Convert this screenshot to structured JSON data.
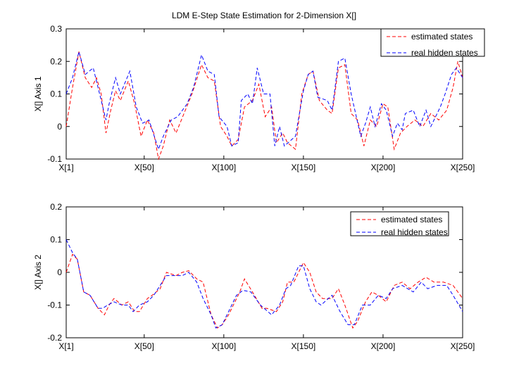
{
  "chart_data": [
    {
      "type": "line",
      "title": "LDM E-Step State Estimation for 2-Dimension X[]",
      "xlabel": "",
      "ylabel": "X[] Axis 1",
      "xlim": [
        1,
        250
      ],
      "ylim": [
        -0.1,
        0.3
      ],
      "xticks": [
        1,
        50,
        100,
        150,
        200,
        250
      ],
      "xtick_labels": [
        "X[1]",
        "X[50]",
        "X[100]",
        "X[150]",
        "X[200]",
        "X[250]"
      ],
      "yticks": [
        -0.1,
        0,
        0.1,
        0.2,
        0.3
      ],
      "ytick_labels": [
        "-0.1",
        "0",
        "0.1",
        "0.2",
        "0.3"
      ],
      "legend_position": "top-right",
      "grid": false,
      "series": [
        {
          "name": "estimated states",
          "color": "#ff0000",
          "style": "dashed",
          "points": [
            [
              1,
              0.0
            ],
            [
              5,
              0.12
            ],
            [
              9,
              0.23
            ],
            [
              13,
              0.15
            ],
            [
              17,
              0.12
            ],
            [
              20,
              0.15
            ],
            [
              23,
              0.1
            ],
            [
              26,
              -0.02
            ],
            [
              29,
              0.05
            ],
            [
              32,
              0.11
            ],
            [
              35,
              0.08
            ],
            [
              40,
              0.14
            ],
            [
              44,
              0.07
            ],
            [
              48,
              -0.03
            ],
            [
              52,
              0.02
            ],
            [
              56,
              -0.02
            ],
            [
              59,
              -0.1
            ],
            [
              62,
              -0.06
            ],
            [
              66,
              0.02
            ],
            [
              70,
              -0.02
            ],
            [
              75,
              0.04
            ],
            [
              80,
              0.1
            ],
            [
              86,
              0.19
            ],
            [
              90,
              0.15
            ],
            [
              94,
              0.14
            ],
            [
              98,
              0.0
            ],
            [
              102,
              -0.03
            ],
            [
              105,
              -0.06
            ],
            [
              109,
              -0.04
            ],
            [
              113,
              0.06
            ],
            [
              118,
              0.08
            ],
            [
              122,
              0.13
            ],
            [
              126,
              0.03
            ],
            [
              130,
              0.06
            ],
            [
              133,
              -0.05
            ],
            [
              137,
              -0.02
            ],
            [
              140,
              -0.05
            ],
            [
              145,
              -0.07
            ],
            [
              149,
              0.1
            ],
            [
              153,
              0.16
            ],
            [
              156,
              0.17
            ],
            [
              160,
              0.08
            ],
            [
              165,
              0.05
            ],
            [
              168,
              0.04
            ],
            [
              172,
              0.18
            ],
            [
              176,
              0.19
            ],
            [
              180,
              0.04
            ],
            [
              184,
              0.02
            ],
            [
              188,
              -0.06
            ],
            [
              192,
              0.02
            ],
            [
              196,
              0.0
            ],
            [
              200,
              0.07
            ],
            [
              203,
              0.06
            ],
            [
              207,
              -0.07
            ],
            [
              211,
              -0.02
            ],
            [
              215,
              0.0
            ],
            [
              220,
              0.02
            ],
            [
              225,
              0.0
            ],
            [
              230,
              0.04
            ],
            [
              235,
              0.02
            ],
            [
              240,
              0.05
            ],
            [
              244,
              0.12
            ],
            [
              247,
              0.2
            ],
            [
              250,
              0.15
            ]
          ]
        },
        {
          "name": "real hidden states",
          "color": "#0000ff",
          "style": "dashed",
          "points": [
            [
              1,
              0.1
            ],
            [
              5,
              0.15
            ],
            [
              9,
              0.23
            ],
            [
              13,
              0.16
            ],
            [
              18,
              0.18
            ],
            [
              21,
              0.12
            ],
            [
              26,
              0.02
            ],
            [
              28,
              0.07
            ],
            [
              32,
              0.15
            ],
            [
              35,
              0.1
            ],
            [
              41,
              0.17
            ],
            [
              45,
              0.06
            ],
            [
              49,
              0.01
            ],
            [
              53,
              0.02
            ],
            [
              59,
              -0.07
            ],
            [
              62,
              -0.03
            ],
            [
              67,
              0.02
            ],
            [
              71,
              0.03
            ],
            [
              77,
              0.07
            ],
            [
              81,
              0.12
            ],
            [
              86,
              0.22
            ],
            [
              90,
              0.17
            ],
            [
              94,
              0.16
            ],
            [
              97,
              0.03
            ],
            [
              102,
              0.0
            ],
            [
              105,
              -0.06
            ],
            [
              109,
              -0.05
            ],
            [
              111,
              0.08
            ],
            [
              115,
              0.1
            ],
            [
              118,
              0.07
            ],
            [
              121,
              0.18
            ],
            [
              125,
              0.1
            ],
            [
              129,
              0.1
            ],
            [
              132,
              -0.06
            ],
            [
              135,
              0.0
            ],
            [
              138,
              -0.06
            ],
            [
              145,
              -0.03
            ],
            [
              150,
              0.11
            ],
            [
              153,
              0.16
            ],
            [
              156,
              0.17
            ],
            [
              159,
              0.09
            ],
            [
              165,
              0.08
            ],
            [
              168,
              0.05
            ],
            [
              172,
              0.2
            ],
            [
              176,
              0.21
            ],
            [
              180,
              0.1
            ],
            [
              186,
              -0.03
            ],
            [
              189,
              0.01
            ],
            [
              192,
              0.06
            ],
            [
              195,
              0.0
            ],
            [
              199,
              0.07
            ],
            [
              202,
              0.05
            ],
            [
              206,
              -0.03
            ],
            [
              209,
              0.01
            ],
            [
              212,
              -0.01
            ],
            [
              214,
              0.04
            ],
            [
              219,
              0.05
            ],
            [
              223,
              0.0
            ],
            [
              227,
              0.05
            ],
            [
              230,
              0.0
            ],
            [
              236,
              0.06
            ],
            [
              239,
              0.1
            ],
            [
              243,
              0.16
            ],
            [
              246,
              0.18
            ],
            [
              250,
              0.15
            ]
          ]
        }
      ]
    },
    {
      "type": "line",
      "xlabel": "",
      "ylabel": "X[] Axis 2",
      "xlim": [
        1,
        250
      ],
      "ylim": [
        -0.2,
        0.2
      ],
      "xticks": [
        1,
        50,
        100,
        150,
        200,
        250
      ],
      "xtick_labels": [
        "X[1]",
        "X[50]",
        "X[100]",
        "X[150]",
        "X[200]",
        "X[250]"
      ],
      "yticks": [
        -0.2,
        -0.1,
        0,
        0.1,
        0.2
      ],
      "ytick_labels": [
        "-0.2",
        "-0.1",
        "0",
        "0.1",
        "0.2"
      ],
      "legend_position": "top-right",
      "grid": false,
      "series": [
        {
          "name": "estimated states",
          "color": "#ff0000",
          "style": "dashed",
          "points": [
            [
              1,
              0.0
            ],
            [
              5,
              0.055
            ],
            [
              8,
              0.04
            ],
            [
              12,
              -0.06
            ],
            [
              16,
              -0.07
            ],
            [
              21,
              -0.11
            ],
            [
              25,
              -0.13
            ],
            [
              28,
              -0.1
            ],
            [
              31,
              -0.08
            ],
            [
              36,
              -0.1
            ],
            [
              40,
              -0.09
            ],
            [
              44,
              -0.12
            ],
            [
              47,
              -0.12
            ],
            [
              52,
              -0.08
            ],
            [
              55,
              -0.07
            ],
            [
              60,
              -0.05
            ],
            [
              64,
              0.0
            ],
            [
              70,
              -0.01
            ],
            [
              74,
              0.0
            ],
            [
              78,
              0.005
            ],
            [
              83,
              -0.02
            ],
            [
              87,
              -0.03
            ],
            [
              92,
              -0.13
            ],
            [
              96,
              -0.17
            ],
            [
              99,
              -0.16
            ],
            [
              103,
              -0.13
            ],
            [
              110,
              -0.06
            ],
            [
              113,
              -0.02
            ],
            [
              118,
              -0.06
            ],
            [
              124,
              -0.11
            ],
            [
              127,
              -0.11
            ],
            [
              133,
              -0.12
            ],
            [
              137,
              -0.09
            ],
            [
              140,
              -0.03
            ],
            [
              144,
              -0.03
            ],
            [
              150,
              0.03
            ],
            [
              154,
              0.0
            ],
            [
              158,
              -0.06
            ],
            [
              162,
              -0.08
            ],
            [
              168,
              -0.08
            ],
            [
              172,
              -0.05
            ],
            [
              176,
              -0.1
            ],
            [
              181,
              -0.17
            ],
            [
              184,
              -0.15
            ],
            [
              189,
              -0.09
            ],
            [
              193,
              -0.06
            ],
            [
              197,
              -0.07
            ],
            [
              202,
              -0.09
            ],
            [
              207,
              -0.04
            ],
            [
              212,
              -0.03
            ],
            [
              217,
              -0.05
            ],
            [
              222,
              -0.03
            ],
            [
              227,
              -0.015
            ],
            [
              232,
              -0.03
            ],
            [
              238,
              -0.03
            ],
            [
              244,
              -0.04
            ],
            [
              250,
              -0.08
            ]
          ]
        },
        {
          "name": "real hidden states",
          "color": "#0000ff",
          "style": "dashed",
          "points": [
            [
              1,
              0.1
            ],
            [
              5,
              0.06
            ],
            [
              8,
              0.04
            ],
            [
              12,
              -0.06
            ],
            [
              16,
              -0.07
            ],
            [
              21,
              -0.11
            ],
            [
              24,
              -0.11
            ],
            [
              27,
              -0.1
            ],
            [
              31,
              -0.09
            ],
            [
              36,
              -0.1
            ],
            [
              40,
              -0.1
            ],
            [
              43,
              -0.12
            ],
            [
              47,
              -0.1
            ],
            [
              52,
              -0.09
            ],
            [
              56,
              -0.07
            ],
            [
              60,
              -0.04
            ],
            [
              64,
              -0.01
            ],
            [
              70,
              -0.01
            ],
            [
              74,
              -0.01
            ],
            [
              78,
              0.0
            ],
            [
              83,
              -0.03
            ],
            [
              87,
              -0.08
            ],
            [
              92,
              -0.13
            ],
            [
              95,
              -0.17
            ],
            [
              99,
              -0.16
            ],
            [
              103,
              -0.12
            ],
            [
              108,
              -0.07
            ],
            [
              112,
              -0.055
            ],
            [
              117,
              -0.06
            ],
            [
              123,
              -0.1
            ],
            [
              130,
              -0.13
            ],
            [
              135,
              -0.1
            ],
            [
              139,
              -0.05
            ],
            [
              142,
              -0.04
            ],
            [
              147,
              0.02
            ],
            [
              150,
              0.02
            ],
            [
              154,
              -0.05
            ],
            [
              158,
              -0.09
            ],
            [
              161,
              -0.1
            ],
            [
              168,
              -0.07
            ],
            [
              173,
              -0.12
            ],
            [
              178,
              -0.16
            ],
            [
              182,
              -0.16
            ],
            [
              187,
              -0.1
            ],
            [
              192,
              -0.1
            ],
            [
              197,
              -0.07
            ],
            [
              202,
              -0.08
            ],
            [
              206,
              -0.05
            ],
            [
              212,
              -0.04
            ],
            [
              219,
              -0.06
            ],
            [
              224,
              -0.03
            ],
            [
              228,
              -0.05
            ],
            [
              234,
              -0.04
            ],
            [
              240,
              -0.04
            ],
            [
              244,
              -0.07
            ],
            [
              250,
              -0.12
            ]
          ]
        }
      ]
    }
  ]
}
